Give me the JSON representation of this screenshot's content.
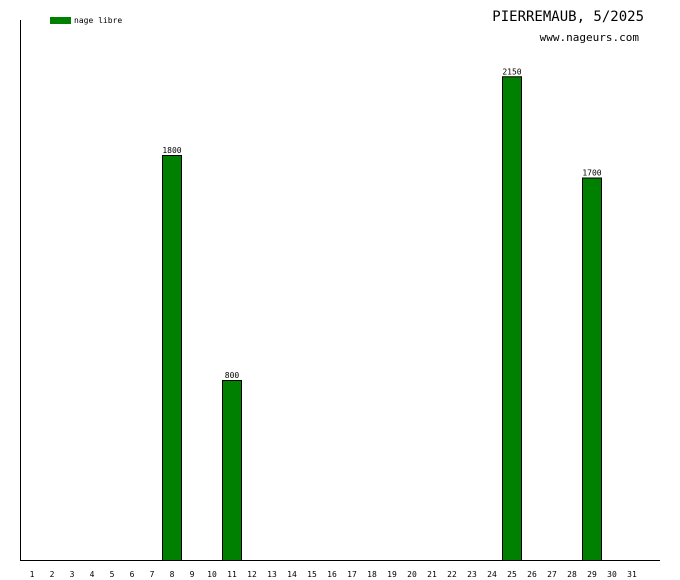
{
  "chart_data": {
    "type": "bar",
    "title": "PIERREMAUB, 5/2025",
    "subtitle": "www.nageurs.com",
    "categories": [
      "1",
      "2",
      "3",
      "4",
      "5",
      "6",
      "7",
      "8",
      "9",
      "10",
      "11",
      "12",
      "13",
      "14",
      "15",
      "16",
      "17",
      "18",
      "19",
      "20",
      "21",
      "22",
      "23",
      "24",
      "25",
      "26",
      "27",
      "28",
      "29",
      "30",
      "31"
    ],
    "series": [
      {
        "name": "nage libre",
        "color": "#008000",
        "values": [
          0,
          0,
          0,
          0,
          0,
          0,
          0,
          1800,
          0,
          0,
          800,
          0,
          0,
          0,
          0,
          0,
          0,
          0,
          0,
          0,
          0,
          0,
          0,
          0,
          2150,
          0,
          0,
          0,
          1700,
          0,
          0
        ]
      }
    ],
    "ylim": [
      0,
      2400
    ],
    "legend_position": "top-left",
    "grid": false
  }
}
